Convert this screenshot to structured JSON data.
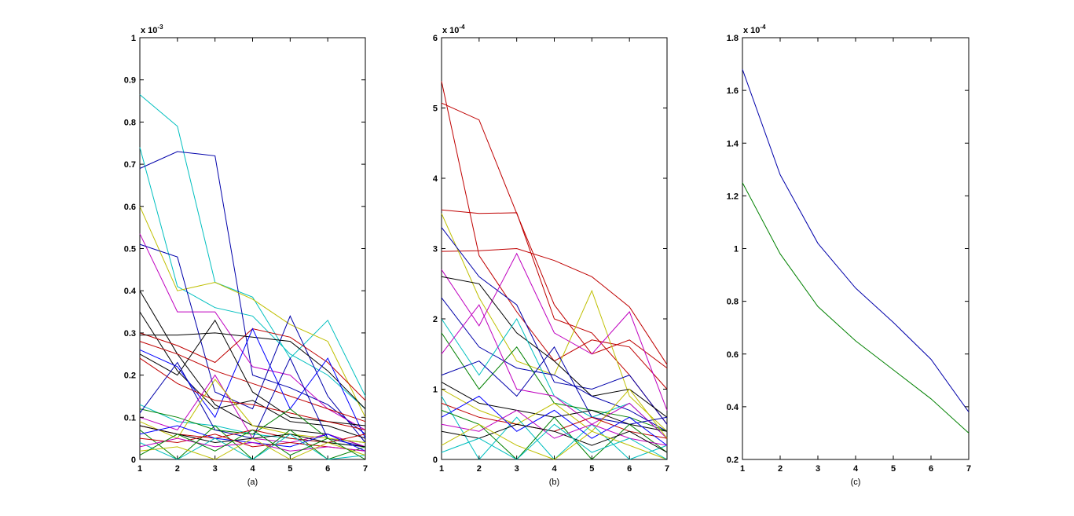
{
  "chart_data": [
    {
      "type": "line",
      "caption": "(a)",
      "exponent_base": "x 10",
      "exponent_power": "-3",
      "x": [
        1,
        2,
        3,
        4,
        5,
        6,
        7
      ],
      "xlim": [
        1,
        7
      ],
      "ylim": [
        0,
        0.001
      ],
      "xticks": [
        "1",
        "2",
        "3",
        "4",
        "5",
        "6",
        "7"
      ],
      "yticks": [
        "0",
        "0.1",
        "0.2",
        "0.3",
        "0.4",
        "0.5",
        "0.6",
        "0.7",
        "0.8",
        "0.9",
        "1"
      ],
      "grid": false,
      "series": [
        {
          "color": "#00bfbf",
          "values": [
            0.000865,
            0.00079,
            0.00042,
            0.000385,
            0.00024,
            0.00033,
            0.00015
          ]
        },
        {
          "color": "#00bfbf",
          "values": [
            0.00074,
            0.00041,
            0.00036,
            0.00034,
            0.00025,
            0.0002,
            0.00012
          ]
        },
        {
          "color": "#0000aa",
          "values": [
            0.00069,
            0.00073,
            0.00072,
            0.0002,
            0.00017,
            0.00013,
            6e-05
          ]
        },
        {
          "color": "#bfbf00",
          "values": [
            0.0006,
            0.0004,
            0.00042,
            0.00038,
            0.00032,
            0.00028,
            0.0001
          ]
        },
        {
          "color": "#bf00bf",
          "values": [
            0.000535,
            0.00035,
            0.00035,
            0.00022,
            0.0002,
            0.00012,
            7e-05
          ]
        },
        {
          "color": "#0000aa",
          "values": [
            0.00051,
            0.00048,
            0.00016,
            0.00012,
            0.00034,
            0.00015,
            4e-05
          ]
        },
        {
          "color": "#000000",
          "values": [
            0.0004,
            0.00025,
            0.00013,
            8e-05,
            7e-05,
            6e-05,
            3e-05
          ]
        },
        {
          "color": "#000000",
          "values": [
            0.00035,
            0.00021,
            0.00012,
            0.00014,
            9e-05,
            8e-05,
            5e-05
          ]
        },
        {
          "color": "#bf0000",
          "values": [
            0.0003,
            0.00027,
            0.00023,
            0.00031,
            0.00029,
            0.00023,
            0.00014
          ]
        },
        {
          "color": "#000000",
          "values": [
            0.000295,
            0.000295,
            0.0003,
            0.00029,
            0.00028,
            0.00021,
            0.00012
          ]
        },
        {
          "color": "#bf0000",
          "values": [
            0.00028,
            0.00025,
            0.00021,
            0.00018,
            0.00015,
            0.00012,
            9e-05
          ]
        },
        {
          "color": "#0000ff",
          "values": [
            0.00026,
            0.00022,
            0.0001,
            0.00031,
            0.00012,
            0.00024,
            5e-05
          ]
        },
        {
          "color": "#000000",
          "values": [
            0.00025,
            0.0002,
            0.00033,
            0.00016,
            0.0001,
            9e-05,
            8e-05
          ]
        },
        {
          "color": "#bf0000",
          "values": [
            0.00024,
            0.00018,
            0.00014,
            0.00013,
            0.00011,
            9e-05,
            7e-05
          ]
        },
        {
          "color": "#00bfbf",
          "values": [
            0.00013,
            9e-05,
            8e-05,
            6e-05,
            5e-05,
            4e-05,
            3e-05
          ]
        },
        {
          "color": "#008000",
          "values": [
            0.00012,
            0.0001,
            7e-05,
            6e-05,
            0.00012,
            5e-05,
            4e-05
          ]
        },
        {
          "color": "#0000aa",
          "values": [
            0.00011,
            0.00023,
            7e-05,
            5e-05,
            0.00024,
            5e-05,
            3e-05
          ]
        },
        {
          "color": "#bf00bf",
          "values": [
            0.0001,
            7e-05,
            0.0002,
            5e-05,
            4e-05,
            6e-05,
            3e-05
          ]
        },
        {
          "color": "#bfbf00",
          "values": [
            9e-05,
            5e-05,
            0.00019,
            8e-05,
            6e-05,
            5e-05,
            4e-05
          ]
        },
        {
          "color": "#bf0000",
          "values": [
            8e-05,
            6e-05,
            5e-05,
            7e-05,
            5e-05,
            4e-05,
            6e-05
          ]
        },
        {
          "color": "#000000",
          "values": [
            8e-05,
            6e-05,
            4e-05,
            5e-05,
            6e-05,
            4e-05,
            3e-05
          ]
        },
        {
          "color": "#008000",
          "values": [
            7e-05,
            0.0,
            8e-05,
            0.0,
            7e-05,
            0.0,
            3e-05
          ]
        },
        {
          "color": "#0000ff",
          "values": [
            6e-05,
            8e-05,
            5e-05,
            4e-05,
            3e-05,
            6e-05,
            2e-05
          ]
        },
        {
          "color": "#bf0000",
          "values": [
            5e-05,
            4e-05,
            6e-05,
            3e-05,
            4e-05,
            3e-05,
            2e-05
          ]
        },
        {
          "color": "#00bfbf",
          "values": [
            4e-05,
            0.0,
            5e-05,
            0.0,
            6e-05,
            0.0,
            1e-05
          ]
        },
        {
          "color": "#bf00bf",
          "values": [
            3e-05,
            5e-05,
            3e-05,
            4e-05,
            2e-05,
            3e-05,
            2e-05
          ]
        },
        {
          "color": "#bfbf00",
          "values": [
            2e-05,
            3e-05,
            0.0,
            5e-05,
            0.0,
            4e-05,
            1e-05
          ]
        },
        {
          "color": "#008000",
          "values": [
            1e-05,
            6e-05,
            2e-05,
            7e-05,
            1e-05,
            5e-05,
            0.0
          ]
        }
      ]
    },
    {
      "type": "line",
      "caption": "(b)",
      "exponent_base": "x 10",
      "exponent_power": "-4",
      "x": [
        1,
        2,
        3,
        4,
        5,
        6,
        7
      ],
      "xlim": [
        1,
        7
      ],
      "ylim": [
        0,
        0.0006
      ],
      "xticks": [
        "1",
        "2",
        "3",
        "4",
        "5",
        "6",
        "7"
      ],
      "yticks": [
        "0",
        "1",
        "2",
        "3",
        "4",
        "5",
        "6"
      ],
      "grid": false,
      "series": [
        {
          "color": "#bf0000",
          "values": [
            0.000538,
            0.00029,
            0.00021,
            0.00014,
            0.00017,
            0.00016,
            0.0001
          ]
        },
        {
          "color": "#bf0000",
          "values": [
            0.000507,
            0.000483,
            0.00035,
            0.00022,
            0.00015,
            0.00017,
            0.00013
          ]
        },
        {
          "color": "#bf0000",
          "values": [
            0.000355,
            0.00035,
            0.000351,
            0.0002,
            0.00018,
            0.00012,
            5e-05
          ]
        },
        {
          "color": "#bf0000",
          "values": [
            0.000296,
            0.000297,
            0.0003,
            0.000283,
            0.00026,
            0.000217,
            0.000135
          ]
        },
        {
          "color": "#bfbf00",
          "values": [
            0.00035,
            0.00023,
            0.00014,
            0.00012,
            0.00024,
            9e-05,
            4e-05
          ]
        },
        {
          "color": "#0000aa",
          "values": [
            0.00033,
            0.00026,
            0.00022,
            0.00011,
            0.0001,
            0.00012,
            5e-05
          ]
        },
        {
          "color": "#bf00bf",
          "values": [
            0.00027,
            0.00019,
            0.000293,
            0.00018,
            0.00015,
            0.00021,
            7e-05
          ]
        },
        {
          "color": "#000000",
          "values": [
            0.00026,
            0.00025,
            0.00018,
            0.00014,
            9e-05,
            0.0001,
            6e-05
          ]
        },
        {
          "color": "#0000aa",
          "values": [
            0.00023,
            0.00016,
            0.00013,
            0.00012,
            9e-05,
            7e-05,
            4e-05
          ]
        },
        {
          "color": "#00bfbf",
          "values": [
            0.0002,
            0.00012,
            0.0002,
            9e-05,
            6e-05,
            8e-05,
            3e-05
          ]
        },
        {
          "color": "#008000",
          "values": [
            0.00018,
            0.0001,
            0.00016,
            8e-05,
            7e-05,
            6e-05,
            4e-05
          ]
        },
        {
          "color": "#bf00bf",
          "values": [
            0.00015,
            0.00022,
            0.0001,
            9e-05,
            5e-05,
            8e-05,
            3e-05
          ]
        },
        {
          "color": "#0000aa",
          "values": [
            0.00012,
            0.00014,
            9e-05,
            0.00016,
            6e-05,
            5e-05,
            6e-05
          ]
        },
        {
          "color": "#000000",
          "values": [
            0.00011,
            8e-05,
            7e-05,
            6e-05,
            7e-05,
            5e-05,
            4e-05
          ]
        },
        {
          "color": "#bfbf00",
          "values": [
            0.0001,
            7e-05,
            5e-05,
            8e-05,
            4e-05,
            0.0001,
            3e-05
          ]
        },
        {
          "color": "#00bfbf",
          "values": [
            9e-05,
            0.0,
            6e-05,
            0.0,
            5e-05,
            0.0,
            2e-05
          ]
        },
        {
          "color": "#bf0000",
          "values": [
            8e-05,
            6e-05,
            5e-05,
            4e-05,
            6e-05,
            4e-05,
            3e-05
          ]
        },
        {
          "color": "#008000",
          "values": [
            7e-05,
            5e-05,
            0.0,
            6e-05,
            0.0,
            5e-05,
            1e-05
          ]
        },
        {
          "color": "#0000ff",
          "values": [
            6e-05,
            9e-05,
            4e-05,
            7e-05,
            3e-05,
            6e-05,
            2e-05
          ]
        },
        {
          "color": "#bf00bf",
          "values": [
            5e-05,
            4e-05,
            7e-05,
            3e-05,
            5e-05,
            3e-05,
            2e-05
          ]
        },
        {
          "color": "#000000",
          "values": [
            4e-05,
            3e-05,
            5e-05,
            4e-05,
            2e-05,
            4e-05,
            1e-05
          ]
        },
        {
          "color": "#bfbf00",
          "values": [
            2e-05,
            5e-05,
            2e-05,
            0.0,
            4e-05,
            2e-05,
            0.0
          ]
        },
        {
          "color": "#00bfbf",
          "values": [
            1e-05,
            3e-05,
            0.0,
            5e-05,
            1e-05,
            3e-05,
            0.0
          ]
        }
      ]
    },
    {
      "type": "line",
      "caption": "(c)",
      "exponent_base": "x 10",
      "exponent_power": "-4",
      "x": [
        1,
        2,
        3,
        4,
        5,
        6,
        7
      ],
      "xlim": [
        1,
        7
      ],
      "ylim": [
        2e-05,
        0.00018
      ],
      "xticks": [
        "1",
        "2",
        "3",
        "4",
        "5",
        "6",
        "7"
      ],
      "yticks": [
        "0.2",
        "0.4",
        "0.6",
        "0.8",
        "1",
        "1.2",
        "1.4",
        "1.6",
        "1.8"
      ],
      "grid": false,
      "series": [
        {
          "color": "#0000aa",
          "values": [
            0.000168,
            0.000128,
            0.000102,
            8.5e-05,
            7.2e-05,
            5.8e-05,
            3.8e-05
          ]
        },
        {
          "color": "#008000",
          "values": [
            0.000125,
            9.8e-05,
            7.8e-05,
            6.5e-05,
            5.4e-05,
            4.3e-05,
            3e-05
          ]
        }
      ]
    }
  ]
}
